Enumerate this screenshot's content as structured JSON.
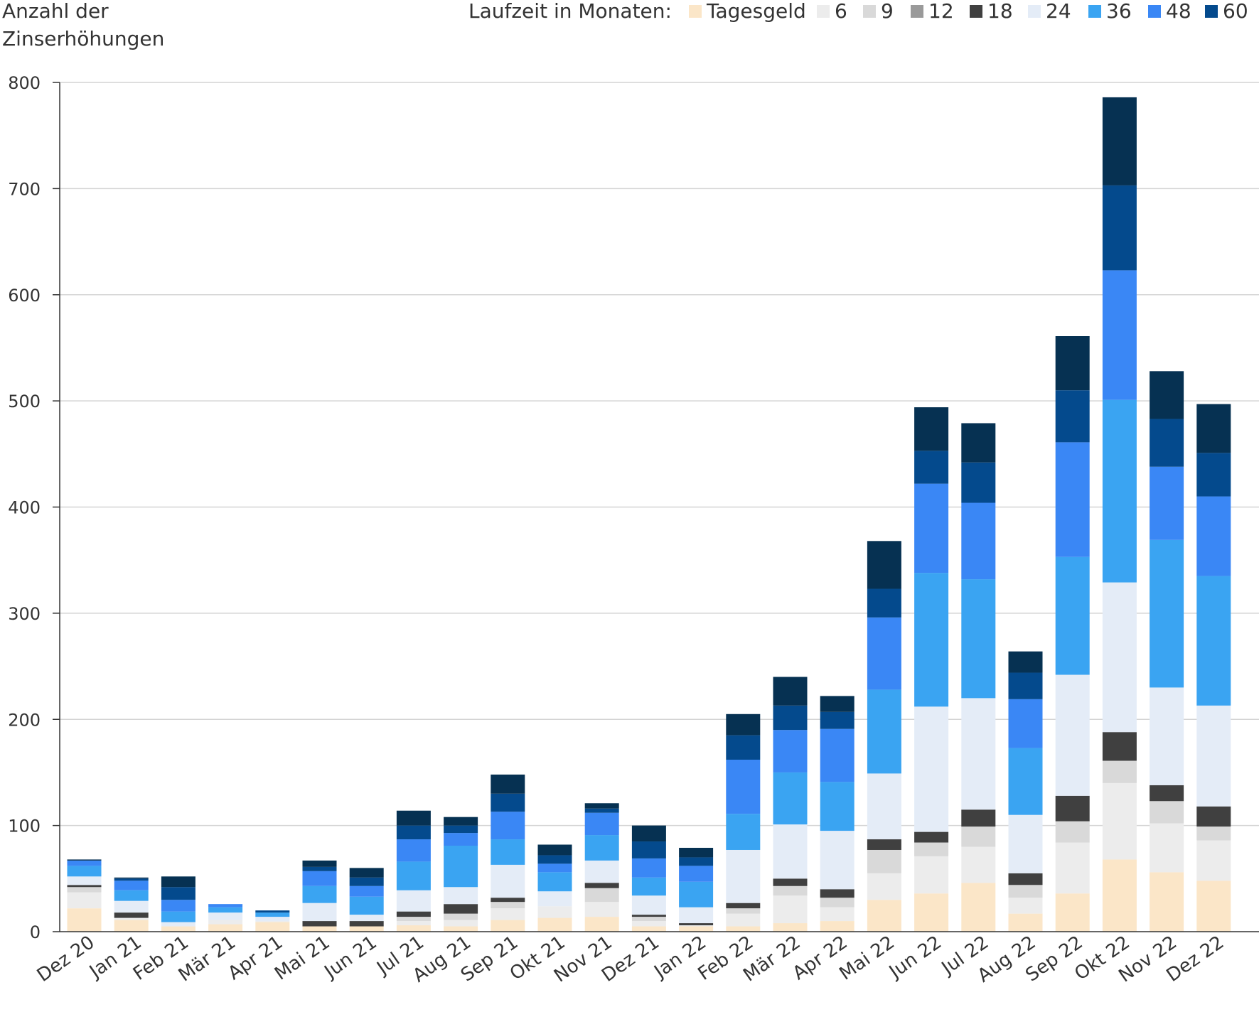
{
  "chart_data": {
    "type": "bar",
    "stacked": true,
    "title": "",
    "xlabel": "",
    "ylabel": [
      "Anzahl der",
      "Zinserhöhungen"
    ],
    "ylim": [
      0,
      800
    ],
    "yticks": [
      0,
      100,
      200,
      300,
      400,
      500,
      600,
      700,
      800
    ],
    "grid": true,
    "legend_title": "Laufzeit in Monaten:",
    "legend_position": "top-right",
    "categories": [
      "Dez 20",
      "Jan 21",
      "Feb 21",
      "Mär 21",
      "Apr 21",
      "Mai 21",
      "Jun 21",
      "Jul 21",
      "Aug 21",
      "Sep 21",
      "Okt 21",
      "Nov 21",
      "Dez 21",
      "Jan 22",
      "Feb 22",
      "Mär 22",
      "Apr 22",
      "Mai 22",
      "Jun 22",
      "Jul 22",
      "Aug 22",
      "Sep 22",
      "Okt 22",
      "Nov 22",
      "Dez 22"
    ],
    "series": [
      {
        "name": "Tagesgeld",
        "color": "#fbe6c8",
        "values": [
          22,
          11,
          5,
          7,
          9,
          5,
          5,
          6,
          5,
          11,
          13,
          14,
          5,
          5,
          5,
          8,
          10,
          30,
          36,
          46,
          17,
          36,
          68,
          56,
          48
        ]
      },
      {
        "name": "6",
        "color": "#ececec",
        "values": [
          15,
          2,
          0,
          4,
          1,
          0,
          0,
          4,
          6,
          11,
          11,
          14,
          5,
          1,
          12,
          26,
          13,
          25,
          35,
          34,
          15,
          48,
          72,
          46,
          38
        ]
      },
      {
        "name": "9",
        "color": "#d9d9d9",
        "values": [
          5,
          0,
          0,
          0,
          0,
          0,
          0,
          4,
          6,
          6,
          0,
          13,
          4,
          0,
          5,
          9,
          9,
          22,
          13,
          19,
          12,
          20,
          21,
          21,
          13
        ]
      },
      {
        "name": "12",
        "color": "#9a9a9a",
        "values": [
          0,
          0,
          0,
          0,
          0,
          0,
          0,
          0,
          0,
          0,
          0,
          0,
          0,
          0,
          0,
          0,
          0,
          0,
          0,
          0,
          0,
          0,
          0,
          0,
          0
        ]
      },
      {
        "name": "18",
        "color": "#404040",
        "values": [
          2,
          5,
          0,
          0,
          0,
          5,
          5,
          5,
          9,
          4,
          0,
          5,
          2,
          2,
          5,
          7,
          8,
          10,
          10,
          16,
          11,
          24,
          27,
          15,
          19
        ]
      },
      {
        "name": "24",
        "color": "#e4ecf7",
        "values": [
          8,
          11,
          4,
          7,
          4,
          17,
          6,
          20,
          16,
          31,
          14,
          21,
          18,
          15,
          50,
          51,
          55,
          62,
          118,
          105,
          55,
          114,
          141,
          92,
          95
        ]
      },
      {
        "name": "36",
        "color": "#3aa4f2",
        "values": [
          10,
          10,
          10,
          5,
          4,
          16,
          17,
          27,
          39,
          24,
          18,
          24,
          17,
          24,
          34,
          49,
          46,
          79,
          126,
          112,
          63,
          111,
          172,
          139,
          122
        ]
      },
      {
        "name": "48",
        "color": "#3a87f5",
        "values": [
          5,
          9,
          11,
          3,
          0,
          14,
          10,
          21,
          12,
          26,
          8,
          21,
          18,
          15,
          51,
          40,
          50,
          68,
          84,
          72,
          46,
          108,
          122,
          69,
          75
        ]
      },
      {
        "name": "60",
        "color": "#044a8d",
        "values": [
          0,
          2,
          12,
          0,
          2,
          4,
          8,
          13,
          7,
          17,
          8,
          4,
          16,
          8,
          23,
          23,
          16,
          27,
          31,
          38,
          25,
          49,
          80,
          45,
          41
        ]
      },
      {
        "name": "",
        "color": "#0a3257",
        "values": [
          0,
          0,
          0,
          0,
          0,
          0,
          0,
          0,
          0,
          0,
          0,
          0,
          0,
          0,
          0,
          0,
          0,
          0,
          0,
          0,
          0,
          0,
          0,
          0,
          0
        ]
      }
    ],
    "top_series": {
      "name": "60",
      "color": "#063152",
      "values": [
        1,
        1,
        10,
        0,
        0,
        6,
        9,
        14,
        8,
        18,
        10,
        5,
        15,
        9,
        20,
        27,
        15,
        45,
        41,
        37,
        20,
        51,
        83,
        45,
        46
      ]
    }
  }
}
